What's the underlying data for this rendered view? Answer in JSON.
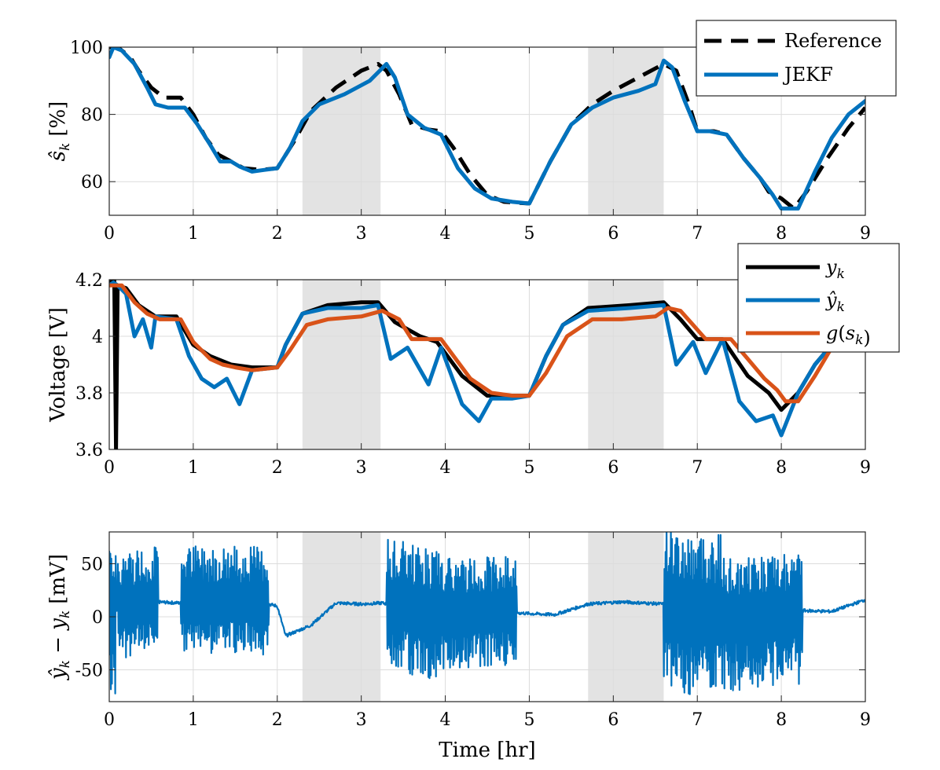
{
  "chart_data": [
    {
      "type": "line",
      "ylabel_symbol": "ŝ",
      "ylabel_sub": "k",
      "ylabel_unit": "[%]",
      "xlim": [
        0,
        9
      ],
      "ylim": [
        50,
        100
      ],
      "xticks": [
        0,
        1,
        2,
        3,
        4,
        5,
        6,
        7,
        8,
        9
      ],
      "yticks": [
        60,
        80,
        100
      ],
      "grid": true,
      "legend_position": "top-right",
      "shaded_regions": [
        [
          2.3,
          3.23
        ],
        [
          5.7,
          6.6
        ]
      ],
      "series": [
        {
          "name": "Reference",
          "style": "dashed",
          "color": "#000000",
          "x": [
            0,
            0.1,
            0.25,
            0.35,
            0.5,
            0.65,
            0.85,
            1.0,
            1.15,
            1.3,
            1.45,
            1.6,
            1.8,
            2.0,
            2.2,
            2.4,
            2.7,
            3.0,
            3.2,
            3.3,
            3.45,
            3.6,
            3.8,
            3.95,
            4.1,
            4.3,
            4.5,
            4.7,
            5.0,
            5.25,
            5.5,
            5.75,
            6.0,
            6.3,
            6.6,
            6.75,
            6.9,
            7.0,
            7.2,
            7.35,
            7.55,
            7.75,
            7.85,
            8.0,
            8.15,
            8.3,
            8.55,
            8.8,
            9.0
          ],
          "y": [
            100,
            100,
            97,
            93,
            88,
            85,
            85,
            80,
            73,
            68,
            66,
            64,
            63.5,
            64,
            72,
            81,
            88,
            93,
            95,
            93,
            86,
            77,
            75.5,
            75,
            70,
            62,
            56,
            54,
            53.5,
            66,
            77,
            83,
            87,
            91,
            95,
            93,
            83,
            75,
            75,
            74,
            67,
            61,
            57,
            55,
            52,
            57,
            67,
            76,
            82
          ]
        },
        {
          "name": "JEKF",
          "style": "solid",
          "color": "#0072BD",
          "x": [
            0,
            0.05,
            0.15,
            0.3,
            0.45,
            0.55,
            0.7,
            0.9,
            1.05,
            1.2,
            1.32,
            1.45,
            1.55,
            1.7,
            1.85,
            2.0,
            2.15,
            2.3,
            2.5,
            2.8,
            3.1,
            3.22,
            3.3,
            3.4,
            3.55,
            3.75,
            3.95,
            4.15,
            4.35,
            4.55,
            4.8,
            5.0,
            5.25,
            5.5,
            5.75,
            6.0,
            6.3,
            6.5,
            6.6,
            6.7,
            6.85,
            7.0,
            7.15,
            7.35,
            7.55,
            7.75,
            7.9,
            8.0,
            8.2,
            8.4,
            8.6,
            8.8,
            9.0
          ],
          "y": [
            97,
            100,
            99,
            95,
            88,
            83,
            82,
            82,
            77,
            71,
            66,
            66,
            64.5,
            63,
            63.5,
            64,
            70,
            78,
            83,
            86,
            90,
            93,
            95,
            91,
            80,
            76,
            74,
            64,
            58,
            55,
            54,
            53.5,
            66,
            77,
            82,
            85,
            87,
            89,
            96,
            94,
            84,
            75,
            75,
            74,
            67,
            61,
            56,
            52,
            52,
            63,
            73,
            80,
            84
          ]
        }
      ]
    },
    {
      "type": "line",
      "ylabel": "Voltage [V]",
      "xlim": [
        0,
        9
      ],
      "ylim": [
        3.6,
        4.2
      ],
      "xticks": [
        0,
        1,
        2,
        3,
        4,
        5,
        6,
        7,
        8,
        9
      ],
      "yticks": [
        3.6,
        3.8,
        4,
        4.2
      ],
      "ytick_labels": [
        "3.6",
        "3.8",
        "4",
        "4.2"
      ],
      "grid": true,
      "legend_position": "top-right",
      "shaded_regions": [
        [
          2.3,
          3.23
        ],
        [
          5.7,
          6.6
        ]
      ],
      "series": [
        {
          "name": "y_k",
          "color": "#000000",
          "x": [
            0,
            0.03,
            0.06,
            0.08,
            0.1,
            0.2,
            0.35,
            0.55,
            0.8,
            1.0,
            1.2,
            1.45,
            1.7,
            2.0,
            2.1,
            2.3,
            2.6,
            3.0,
            3.2,
            3.4,
            3.7,
            3.9,
            4.2,
            4.5,
            4.8,
            5.0,
            5.2,
            5.4,
            5.7,
            6.2,
            6.6,
            6.8,
            7.0,
            7.3,
            7.6,
            7.85,
            8.0,
            8.2,
            8.4,
            8.6
          ],
          "y": [
            4.19,
            4.2,
            4.2,
            3.6,
            4.18,
            4.17,
            4.11,
            4.07,
            4.07,
            3.97,
            3.93,
            3.9,
            3.89,
            3.89,
            3.97,
            4.08,
            4.11,
            4.12,
            4.12,
            4.05,
            4.0,
            3.98,
            3.86,
            3.79,
            3.79,
            3.79,
            3.93,
            4.04,
            4.1,
            4.11,
            4.12,
            4.06,
            3.99,
            3.99,
            3.86,
            3.8,
            3.74,
            3.8,
            3.9,
            3.97
          ]
        },
        {
          "name": "ŷ_k",
          "color": "#0072BD",
          "x": [
            0,
            0.05,
            0.1,
            0.2,
            0.3,
            0.4,
            0.5,
            0.55,
            0.8,
            0.95,
            1.1,
            1.25,
            1.4,
            1.55,
            1.7,
            2.0,
            2.1,
            2.3,
            2.6,
            3.0,
            3.2,
            3.35,
            3.55,
            3.8,
            3.95,
            4.2,
            4.4,
            4.55,
            4.8,
            5.0,
            5.2,
            5.4,
            5.7,
            6.2,
            6.6,
            6.75,
            6.95,
            7.1,
            7.3,
            7.5,
            7.7,
            7.9,
            8.0,
            8.2,
            8.4,
            8.6
          ],
          "y": [
            4.18,
            4.19,
            4.18,
            4.15,
            4.0,
            4.06,
            3.96,
            4.07,
            4.06,
            3.93,
            3.85,
            3.82,
            3.85,
            3.76,
            3.88,
            3.89,
            3.97,
            4.08,
            4.1,
            4.1,
            4.11,
            3.92,
            3.96,
            3.83,
            3.96,
            3.76,
            3.7,
            3.78,
            3.78,
            3.79,
            3.93,
            4.04,
            4.09,
            4.1,
            4.11,
            3.9,
            3.98,
            3.87,
            3.99,
            3.77,
            3.7,
            3.72,
            3.65,
            3.8,
            3.9,
            3.97
          ]
        },
        {
          "name": "g(s_k)",
          "color": "#D95319",
          "x": [
            0,
            0.05,
            0.15,
            0.3,
            0.45,
            0.6,
            0.85,
            1.0,
            1.2,
            1.35,
            1.5,
            1.7,
            2.0,
            2.15,
            2.35,
            2.6,
            3.0,
            3.25,
            3.45,
            3.6,
            3.95,
            4.1,
            4.3,
            4.55,
            4.8,
            5.0,
            5.2,
            5.45,
            5.75,
            6.1,
            6.5,
            6.65,
            6.8,
            6.95,
            7.1,
            7.4,
            7.6,
            7.8,
            7.95,
            8.05,
            8.2,
            8.4,
            8.6
          ],
          "y": [
            4.18,
            4.18,
            4.18,
            4.12,
            4.08,
            4.06,
            4.06,
            3.98,
            3.92,
            3.9,
            3.89,
            3.88,
            3.89,
            3.95,
            4.04,
            4.06,
            4.07,
            4.09,
            4.06,
            3.99,
            3.99,
            3.93,
            3.85,
            3.8,
            3.79,
            3.79,
            3.87,
            4.0,
            4.06,
            4.06,
            4.07,
            4.1,
            4.09,
            4.04,
            3.99,
            3.99,
            3.92,
            3.85,
            3.81,
            3.77,
            3.77,
            3.86,
            3.96
          ]
        }
      ]
    },
    {
      "type": "line",
      "ylabel_symbol_a": "ŷ",
      "ylabel_mid": " − ",
      "ylabel_symbol_b": "y",
      "ylabel_sub": "k",
      "ylabel_unit": "[mV]",
      "xlabel": "Time [hr]",
      "xlim": [
        0,
        9
      ],
      "ylim": [
        -80,
        80
      ],
      "xticks": [
        0,
        1,
        2,
        3,
        4,
        5,
        6,
        7,
        8,
        9
      ],
      "yticks": [
        -50,
        0,
        50
      ],
      "grid": true,
      "shaded_regions": [
        [
          2.3,
          3.23
        ],
        [
          5.7,
          6.6
        ]
      ],
      "series": [
        {
          "name": "",
          "color": "#0072BD",
          "baseline": {
            "x": [
              0,
              0.55,
              0.85,
              1.9,
              2.0,
              2.1,
              2.4,
              2.7,
              3.0,
              3.25,
              3.45,
              4.0,
              4.6,
              4.8,
              5.0,
              5.3,
              5.7,
              6.1,
              6.6,
              6.8,
              7.2,
              7.4,
              8.0,
              8.2,
              8.6,
              9.0
            ],
            "y": [
              5,
              14,
              13,
              12,
              10,
              -18,
              -8,
              13,
              12,
              13,
              10,
              0,
              4,
              4,
              3,
              2,
              12,
              14,
              12,
              0,
              0,
              0,
              3,
              6,
              5,
              16
            ]
          },
          "bursts": [
            {
              "range": [
                0.0,
                0.08
              ],
              "amp": [
                80,
                -80
              ]
            },
            {
              "range": [
                0.1,
                0.58
              ],
              "amp": [
                55,
                -48
              ]
            },
            {
              "range": [
                0.85,
                1.9
              ],
              "amp": [
                55,
                -48
              ]
            },
            {
              "range": [
                3.3,
                3.95
              ],
              "amp": [
                62,
                -62
              ]
            },
            {
              "range": [
                3.95,
                4.85
              ],
              "amp": [
                55,
                -50
              ]
            },
            {
              "range": [
                6.6,
                7.3
              ],
              "amp": [
                80,
                -75
              ]
            },
            {
              "range": [
                7.3,
                8.25
              ],
              "amp": [
                55,
                -70
              ]
            }
          ]
        }
      ]
    }
  ]
}
